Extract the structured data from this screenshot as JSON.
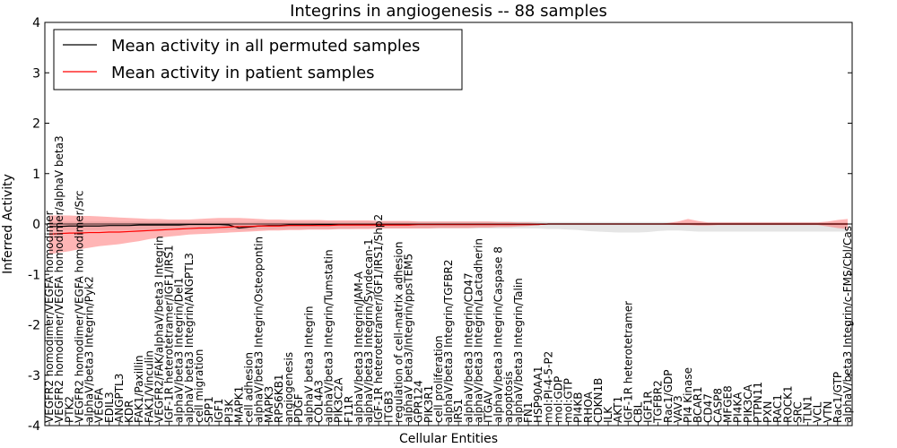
{
  "chart_data": {
    "type": "line",
    "title": "Integrins in angiogenesis -- 88 samples",
    "xlabel": "Cellular Entities",
    "ylabel": "Inferred Activity",
    "ylim": [
      -4,
      4
    ],
    "yticks": [
      -4,
      -3,
      -2,
      -1,
      0,
      1,
      2,
      3,
      4
    ],
    "legend_position": "top-left",
    "categories": [
      "VEGFR2 homodimer/VEGFA homodimer",
      "VEGFR2 homodimer/VEGFA homodimer/alphaV beta3",
      "PTK2",
      "VEGFR2 homodimer/VEGFA homodimer/Src",
      "alphaV/beta3 Integrin/Pyk2",
      "VEGFA",
      "EDIL3",
      "ANGPTL3",
      "KDR",
      "FAK1/Paxillin",
      "FAK1/Vinculin",
      "VEGFR2/FAK/alphaV/beta3 Integrin",
      "IGF-1R heterotetramer/IGF1/IRS1",
      "alphaV/beta3 Integrin/Del1",
      "alphaV beta3 Integrin/ANGPTL3",
      "cell migration",
      "SPP1",
      "IGF1",
      "PI3K",
      "MAPK1",
      "cell adhesion",
      "alphaV/beta3 Integrin/Osteopontin",
      "MAPK3",
      "RPS6KB1",
      "angiogenesis",
      "PDGF",
      "alphaV beta3 Integrin",
      "COL4A3",
      "alphaV/beta3 Integrin/Tumstatin",
      "PIK3C2A",
      "F11R",
      "alphaV/beta3 Integrin/JAM-A",
      "alphaV/beta3 Integrin/Syndecan-1",
      "IGF-1R heterotetramer/IGF1/IRS1/Shp2",
      "ITGB3",
      "regulation of cell-matrix adhesion",
      "alphaV beta3/Integrin/ppsTEM5",
      "GPR124",
      "PIK3R1",
      "cell proliferation",
      "alphaV/beta3 Integrin/TGFBR2",
      "IRS1",
      "alphaV/beta3 Integrin/CD47",
      "alphaV/beta3 Integrin/Lactadherin",
      "ITGAV",
      "alphaV/beta3 Integrin/Caspase 8",
      "apoptosis",
      "alphaV/beta3 Integrin/Talin",
      "FN1",
      "HSP90AA1",
      "mol:PI-4-5-P2",
      "mol:GDP",
      "mol:GTP",
      "PI4KB",
      "RHOA",
      "CDKN1B",
      "ILK",
      "AKT1",
      "IGF-1R heterotetramer",
      "CBL",
      "IGF1R",
      "TGFBR2",
      "Rac1/GDP",
      "VAV3",
      "PI4 Kinase",
      "BCAR1",
      "CD47",
      "CASP8",
      "MFGE8",
      "PI4KA",
      "PIK3CA",
      "PTPN11",
      "PXN",
      "RAC1",
      "ROCK1",
      "SRC",
      "TLN1",
      "VCL",
      "VTN",
      "Rac1/GTP",
      "alphaV/beta3 Integrin/c-FMS/Cbl/Cas"
    ],
    "series": [
      {
        "name": "Mean activity in all permuted samples",
        "color": "#000000",
        "values": [
          -0.05,
          -0.05,
          -0.04,
          -0.04,
          -0.04,
          -0.04,
          -0.03,
          -0.03,
          -0.03,
          -0.02,
          -0.02,
          -0.02,
          -0.02,
          -0.02,
          -0.01,
          -0.01,
          -0.01,
          -0.01,
          -0.02,
          -0.08,
          -0.06,
          -0.04,
          -0.03,
          -0.03,
          -0.02,
          -0.02,
          -0.02,
          -0.01,
          -0.01,
          -0.01,
          -0.01,
          -0.01,
          -0.01,
          -0.01,
          -0.01,
          -0.01,
          -0.01,
          -0.01,
          -0.01,
          -0.01,
          -0.01,
          -0.01,
          -0.01,
          -0.01,
          -0.01,
          -0.01,
          -0.01,
          -0.01,
          -0.01,
          -0.01,
          0,
          0,
          0,
          0,
          0,
          0,
          0,
          0,
          0,
          0,
          0,
          0,
          0,
          0,
          0,
          0,
          0,
          0,
          0,
          0,
          0,
          0,
          0,
          0,
          0,
          0,
          0,
          0,
          0,
          0,
          0
        ]
      },
      {
        "name": "Mean activity in patient samples",
        "color": "#ff0000",
        "values": [
          -0.2,
          -0.19,
          -0.18,
          -0.18,
          -0.17,
          -0.17,
          -0.16,
          -0.16,
          -0.15,
          -0.14,
          -0.13,
          -0.12,
          -0.11,
          -0.1,
          -0.09,
          -0.08,
          -0.08,
          -0.07,
          -0.06,
          -0.05,
          -0.05,
          -0.04,
          -0.04,
          -0.04,
          -0.03,
          -0.03,
          -0.03,
          -0.03,
          -0.03,
          -0.02,
          -0.02,
          -0.02,
          -0.02,
          -0.02,
          -0.02,
          -0.02,
          -0.02,
          -0.01,
          -0.01,
          -0.01,
          -0.01,
          -0.01,
          -0.01,
          -0.01,
          -0.01,
          -0.01,
          -0.01,
          -0.01,
          -0.01,
          -0.01,
          0,
          0,
          0,
          0,
          0,
          0,
          0,
          0,
          0,
          0,
          0,
          0,
          0,
          0,
          0,
          0,
          0,
          0,
          0,
          0,
          0,
          0,
          0,
          0,
          0,
          0,
          0,
          0,
          0,
          0,
          0
        ]
      }
    ],
    "bands": [
      {
        "name": "permuted samples spread",
        "color": "#d3d3d3",
        "lower": [
          -0.12,
          -0.12,
          -0.12,
          -0.12,
          -0.12,
          -0.12,
          -0.12,
          -0.12,
          -0.12,
          -0.12,
          -0.12,
          -0.12,
          -0.12,
          -0.11,
          -0.11,
          -0.11,
          -0.11,
          -0.11,
          -0.11,
          -0.12,
          -0.12,
          -0.11,
          -0.11,
          -0.1,
          -0.1,
          -0.1,
          -0.1,
          -0.1,
          -0.1,
          -0.1,
          -0.1,
          -0.09,
          -0.09,
          -0.09,
          -0.09,
          -0.09,
          -0.09,
          -0.09,
          -0.09,
          -0.09,
          -0.09,
          -0.09,
          -0.09,
          -0.09,
          -0.09,
          -0.09,
          -0.09,
          -0.09,
          -0.09,
          -0.09,
          -0.1,
          -0.1,
          -0.11,
          -0.12,
          -0.14,
          -0.15,
          -0.16,
          -0.17,
          -0.17,
          -0.17,
          -0.16,
          -0.14,
          -0.13,
          -0.13,
          -0.14,
          -0.15,
          -0.15,
          -0.15,
          -0.15,
          -0.15,
          -0.15,
          -0.15,
          -0.15,
          -0.15,
          -0.15,
          -0.15,
          -0.15,
          -0.15,
          -0.15,
          -0.15,
          -0.15
        ],
        "upper": [
          0.05,
          0.05,
          0.05,
          0.05,
          0.05,
          0.05,
          0.05,
          0.05,
          0.05,
          0.05,
          0.05,
          0.05,
          0.05,
          0.05,
          0.05,
          0.05,
          0.05,
          0.05,
          0.05,
          0.04,
          0.04,
          0.05,
          0.05,
          0.05,
          0.05,
          0.05,
          0.05,
          0.05,
          0.05,
          0.05,
          0.05,
          0.05,
          0.05,
          0.05,
          0.05,
          0.05,
          0.05,
          0.05,
          0.05,
          0.05,
          0.05,
          0.05,
          0.05,
          0.05,
          0.05,
          0.05,
          0.05,
          0.05,
          0.05,
          0.05,
          0.04,
          0.04,
          0.04,
          0.04,
          0.04,
          0.04,
          0.04,
          0.04,
          0.04,
          0.04,
          0.04,
          0.04,
          0.04,
          0.04,
          0.04,
          0.04,
          0.04,
          0.04,
          0.04,
          0.04,
          0.04,
          0.04,
          0.04,
          0.04,
          0.04,
          0.04,
          0.04,
          0.04,
          0.04,
          0.04,
          0.04
        ]
      },
      {
        "name": "patient samples spread",
        "color": "#ff6b6b",
        "lower": [
          -0.6,
          -0.57,
          -0.54,
          -0.5,
          -0.47,
          -0.44,
          -0.42,
          -0.4,
          -0.37,
          -0.34,
          -0.3,
          -0.27,
          -0.25,
          -0.23,
          -0.21,
          -0.2,
          -0.19,
          -0.18,
          -0.17,
          -0.16,
          -0.15,
          -0.14,
          -0.13,
          -0.13,
          -0.12,
          -0.12,
          -0.11,
          -0.11,
          -0.11,
          -0.1,
          -0.1,
          -0.1,
          -0.1,
          -0.09,
          -0.09,
          -0.09,
          -0.09,
          -0.09,
          -0.09,
          -0.08,
          -0.08,
          -0.08,
          -0.08,
          -0.07,
          -0.07,
          -0.06,
          -0.06,
          -0.05,
          -0.04,
          -0.02,
          -0.01,
          0,
          0,
          0,
          0,
          0,
          0,
          0,
          0,
          0,
          0,
          0,
          -0.01,
          -0.02,
          -0.02,
          -0.03,
          -0.03,
          -0.02,
          -0.02,
          -0.02,
          -0.02,
          -0.02,
          -0.02,
          -0.02,
          -0.02,
          -0.02,
          -0.02,
          -0.02,
          -0.05,
          -0.08,
          -0.1
        ],
        "upper": [
          0.17,
          0.17,
          0.17,
          0.16,
          0.16,
          0.15,
          0.14,
          0.13,
          0.12,
          0.11,
          0.1,
          0.1,
          0.09,
          0.09,
          0.09,
          0.1,
          0.11,
          0.12,
          0.12,
          0.12,
          0.11,
          0.1,
          0.09,
          0.09,
          0.08,
          0.08,
          0.08,
          0.08,
          0.07,
          0.07,
          0.07,
          0.07,
          0.07,
          0.06,
          0.06,
          0.06,
          0.06,
          0.05,
          0.05,
          0.05,
          0.05,
          0.05,
          0.05,
          0.05,
          0.05,
          0.04,
          0.04,
          0.03,
          0.03,
          0.02,
          0.01,
          0,
          0,
          0,
          0,
          0,
          0,
          0,
          0,
          0,
          0,
          0,
          0.02,
          0.05,
          0.1,
          0.06,
          0.03,
          0.03,
          0.03,
          0.03,
          0.03,
          0.03,
          0.03,
          0.03,
          0.03,
          0.03,
          0.03,
          0.03,
          0.05,
          0.08,
          0.1
        ]
      }
    ]
  }
}
